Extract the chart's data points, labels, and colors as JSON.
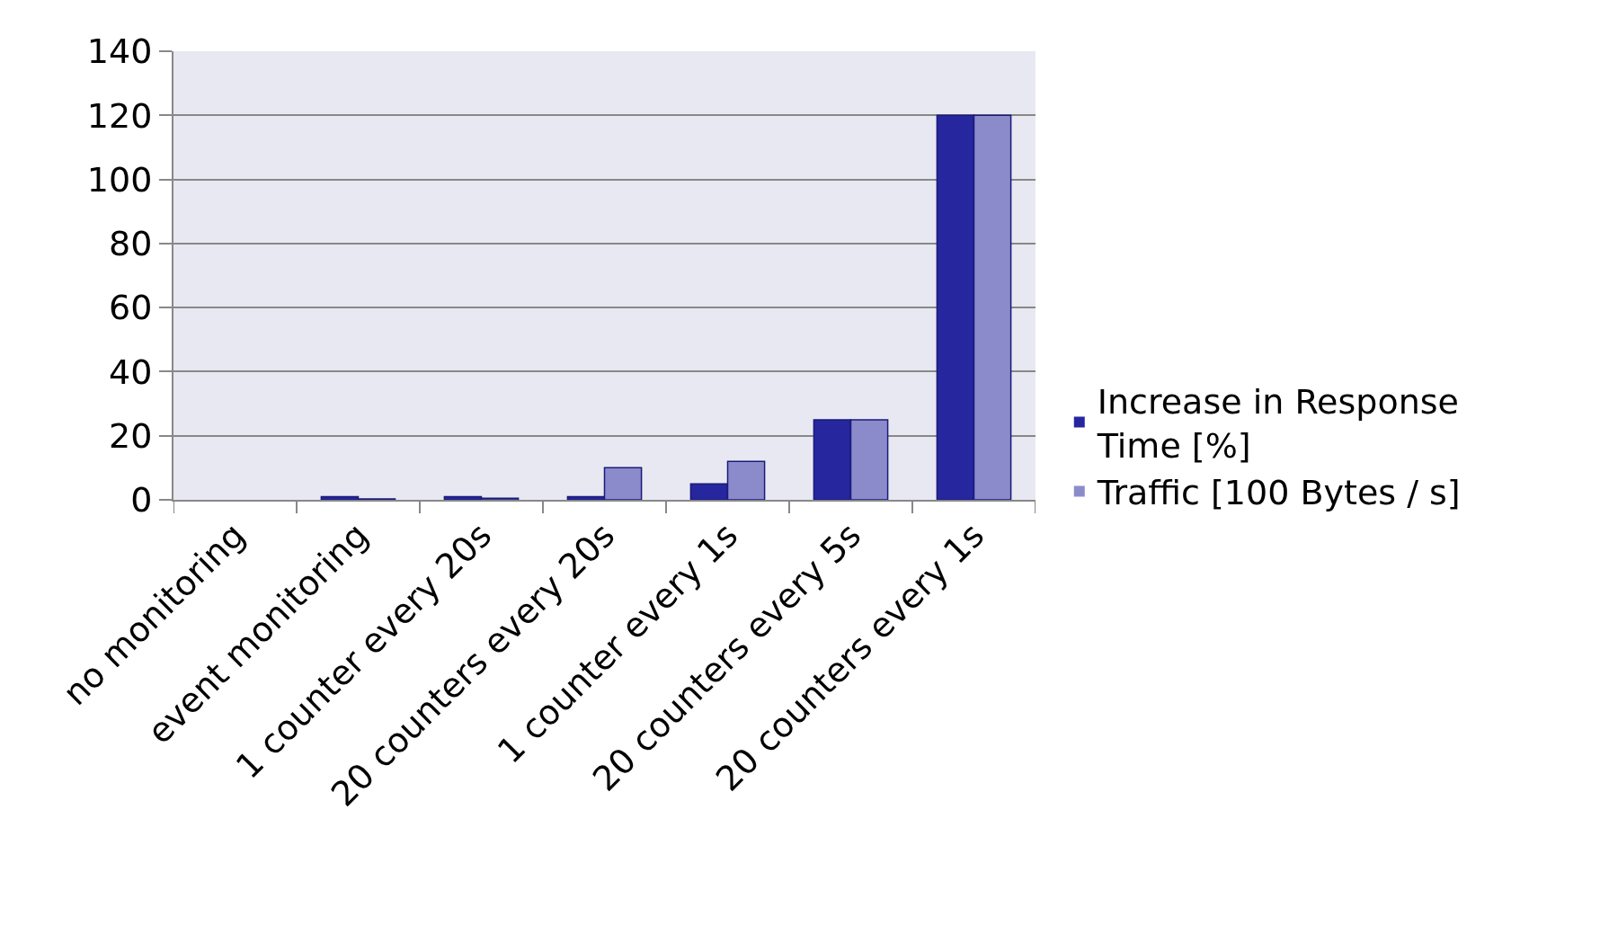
{
  "chart_data": {
    "type": "bar",
    "categories": [
      "no monitoring",
      "event monitoring",
      "1 counter every 20s",
      "20 counters every 20s",
      "1 counter every 1s",
      "20 counters every 5s",
      "20 counters every 1s"
    ],
    "series": [
      {
        "name": "Increase in Response Time [%]",
        "color": "#26269f",
        "values": [
          0,
          1,
          1,
          1,
          5,
          25,
          120
        ]
      },
      {
        "name": "Traffic [100 Bytes / s]",
        "color": "#8b8bcc",
        "values": [
          0,
          0.3,
          0.5,
          10,
          12,
          25,
          120
        ]
      }
    ],
    "ylim": [
      0,
      140
    ],
    "yticks": [
      0,
      20,
      40,
      60,
      80,
      100,
      120,
      140
    ],
    "grid": "y",
    "legend": "right"
  }
}
